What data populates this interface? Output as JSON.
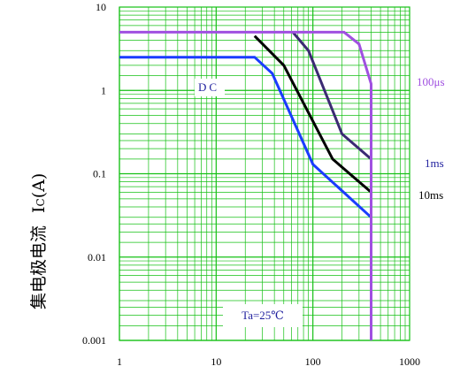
{
  "chart_data": {
    "type": "line",
    "x_scale": "log",
    "y_scale": "log",
    "xlim": [
      1,
      1000
    ],
    "ylim": [
      0.001,
      10
    ],
    "x_ticks": [
      "1",
      "10",
      "100",
      "1000"
    ],
    "y_ticks": [
      "10",
      "1",
      "0.1",
      "0.01",
      "0.001"
    ],
    "ylabel_main": "集电极电流",
    "ylabel_symbol": "I",
    "ylabel_sub": "C",
    "ylabel_unit": "(A)",
    "annotation": "Ta=25℃",
    "grid": true,
    "series": [
      {
        "name": "DC",
        "color": "#1a3cff",
        "x": [
          1,
          25,
          38,
          100,
          400,
          400
        ],
        "y": [
          2.5,
          2.5,
          1.6,
          0.13,
          0.03,
          0.03
        ]
      },
      {
        "name": "10ms",
        "color": "#000000",
        "x": [
          25,
          50,
          160,
          400
        ],
        "y": [
          4.5,
          2.0,
          0.15,
          0.06
        ]
      },
      {
        "name": "1ms",
        "color": "#3b2a73",
        "x": [
          62,
          90,
          200,
          400
        ],
        "y": [
          5.0,
          3.0,
          0.3,
          0.15
        ]
      },
      {
        "name": "100μs",
        "color": "#a050e0",
        "x": [
          1,
          210,
          300,
          400,
          400
        ],
        "y": [
          5.0,
          5.0,
          3.6,
          1.2,
          0.001
        ]
      }
    ]
  }
}
